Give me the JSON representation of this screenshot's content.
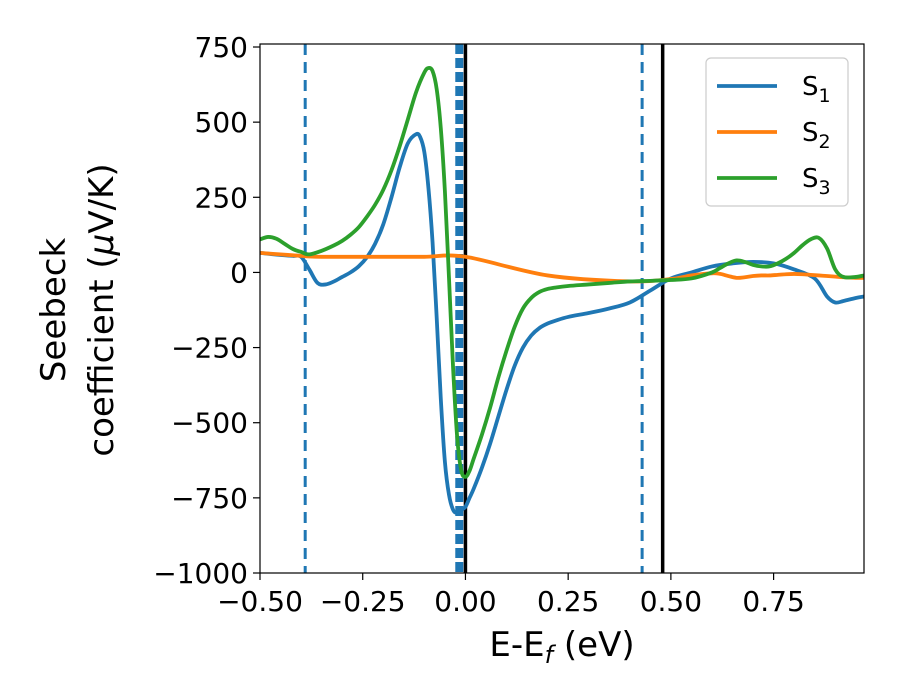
{
  "chart_data": {
    "type": "line",
    "xlabel": "E-E",
    "xlabel_sub": "f",
    "xlabel_unit": " (eV)",
    "ylabel_line1": "Seebeck",
    "ylabel_line2": "coefficient  (",
    "ylabel_mu": "μ",
    "ylabel_unit": "V/K)",
    "xlim": [
      -0.5,
      0.97
    ],
    "ylim": [
      -1000,
      760
    ],
    "xticks": [
      {
        "value": -0.5,
        "label": "−0.50"
      },
      {
        "value": -0.25,
        "label": "−0.25"
      },
      {
        "value": 0.0,
        "label": "0.00"
      },
      {
        "value": 0.25,
        "label": "0.25"
      },
      {
        "value": 0.5,
        "label": "0.50"
      },
      {
        "value": 0.75,
        "label": "0.75"
      }
    ],
    "yticks": [
      {
        "value": 750,
        "label": "750"
      },
      {
        "value": 500,
        "label": "500"
      },
      {
        "value": 250,
        "label": "250"
      },
      {
        "value": 0,
        "label": "0"
      },
      {
        "value": -250,
        "label": "−250"
      },
      {
        "value": -500,
        "label": "−500"
      },
      {
        "value": -750,
        "label": "−750"
      },
      {
        "value": -1000,
        "label": "−1000"
      }
    ],
    "grid": false,
    "legend_position": "top-right",
    "series": [
      {
        "name": "S",
        "subscript": "1",
        "color": "#1f77b4",
        "x": [
          -0.5,
          -0.45,
          -0.42,
          -0.4,
          -0.38,
          -0.36,
          -0.34,
          -0.32,
          -0.3,
          -0.28,
          -0.26,
          -0.24,
          -0.22,
          -0.2,
          -0.18,
          -0.16,
          -0.14,
          -0.12,
          -0.11,
          -0.1,
          -0.09,
          -0.08,
          -0.07,
          -0.06,
          -0.05,
          -0.04,
          -0.03,
          -0.02,
          -0.01,
          0.0,
          0.01,
          0.02,
          0.04,
          0.06,
          0.08,
          0.1,
          0.12,
          0.14,
          0.16,
          0.18,
          0.2,
          0.22,
          0.25,
          0.3,
          0.35,
          0.4,
          0.45,
          0.5,
          0.55,
          0.6,
          0.65,
          0.7,
          0.75,
          0.8,
          0.85,
          0.88,
          0.9,
          0.92,
          0.95,
          0.97
        ],
        "y": [
          65,
          58,
          55,
          52,
          10,
          -35,
          -40,
          -30,
          -15,
          0,
          20,
          50,
          95,
          160,
          250,
          350,
          430,
          460,
          450,
          400,
          280,
          100,
          -150,
          -420,
          -630,
          -740,
          -790,
          -800,
          -790,
          -780,
          -750,
          -720,
          -650,
          -570,
          -480,
          -390,
          -310,
          -250,
          -210,
          -185,
          -170,
          -160,
          -148,
          -135,
          -120,
          -100,
          -60,
          -20,
          0,
          20,
          30,
          35,
          30,
          10,
          -20,
          -80,
          -100,
          -95,
          -85,
          -80
        ]
      },
      {
        "name": "S",
        "subscript": "2",
        "color": "#ff7f0e",
        "x": [
          -0.5,
          -0.45,
          -0.4,
          -0.38,
          -0.35,
          -0.3,
          -0.2,
          -0.1,
          0.0,
          0.2,
          0.4,
          0.5,
          0.55,
          0.6,
          0.62,
          0.64,
          0.66,
          0.68,
          0.7,
          0.72,
          0.74,
          0.76,
          0.78,
          0.8,
          0.82,
          0.84,
          0.86,
          0.88,
          0.9,
          0.92,
          0.95,
          0.97
        ],
        "y": [
          65,
          60,
          55,
          53,
          52,
          52,
          52,
          52,
          52,
          -10,
          -30,
          -22,
          -10,
          -3,
          -5,
          -12,
          -18,
          -16,
          -12,
          -10,
          -10,
          -8,
          -6,
          -5,
          -6,
          -8,
          -10,
          -12,
          -14,
          -16,
          -18,
          -18
        ]
      },
      {
        "name": "S",
        "subscript": "3",
        "color": "#2ca02c",
        "x": [
          -0.5,
          -0.48,
          -0.46,
          -0.44,
          -0.42,
          -0.4,
          -0.38,
          -0.35,
          -0.32,
          -0.3,
          -0.28,
          -0.26,
          -0.24,
          -0.22,
          -0.2,
          -0.18,
          -0.16,
          -0.14,
          -0.12,
          -0.1,
          -0.09,
          -0.08,
          -0.07,
          -0.06,
          -0.05,
          -0.04,
          -0.03,
          -0.02,
          -0.01,
          0.0,
          0.01,
          0.02,
          0.04,
          0.06,
          0.08,
          0.1,
          0.12,
          0.14,
          0.16,
          0.18,
          0.2,
          0.22,
          0.25,
          0.3,
          0.35,
          0.4,
          0.45,
          0.5,
          0.55,
          0.6,
          0.62,
          0.64,
          0.66,
          0.68,
          0.7,
          0.72,
          0.74,
          0.76,
          0.78,
          0.8,
          0.82,
          0.84,
          0.86,
          0.88,
          0.9,
          0.92,
          0.95,
          0.97
        ],
        "y": [
          110,
          118,
          112,
          95,
          78,
          68,
          60,
          72,
          90,
          105,
          125,
          150,
          185,
          225,
          275,
          340,
          420,
          510,
          600,
          665,
          680,
          670,
          610,
          480,
          270,
          -20,
          -320,
          -550,
          -660,
          -680,
          -660,
          -620,
          -540,
          -450,
          -350,
          -260,
          -180,
          -120,
          -85,
          -65,
          -55,
          -50,
          -45,
          -40,
          -35,
          -30,
          -28,
          -25,
          -20,
          0,
          15,
          30,
          40,
          35,
          25,
          20,
          20,
          30,
          45,
          65,
          90,
          110,
          115,
          80,
          10,
          -15,
          -15,
          -10
        ]
      }
    ],
    "vlines": [
      {
        "x": -0.39,
        "style": "dashed",
        "color": "#1f77b4",
        "width": 3
      },
      {
        "x": -0.015,
        "style": "dashed",
        "color": "#1f77b4",
        "width": 8
      },
      {
        "x": 0.0,
        "style": "solid",
        "color": "#000000",
        "width": 3.5
      },
      {
        "x": 0.43,
        "style": "dashed",
        "color": "#1f77b4",
        "width": 3
      },
      {
        "x": 0.48,
        "style": "solid",
        "color": "#000000",
        "width": 3.5
      }
    ]
  }
}
